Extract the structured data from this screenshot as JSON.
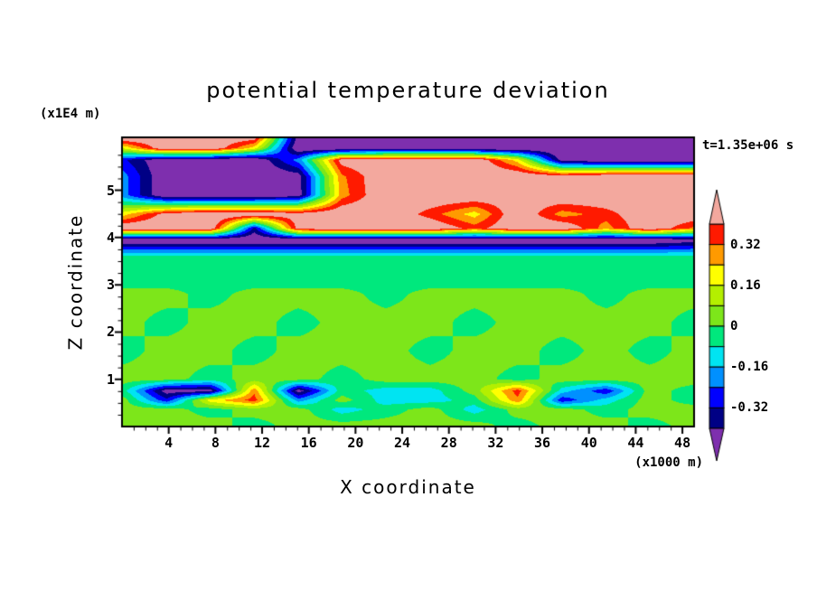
{
  "chart_data": {
    "type": "heatmap",
    "title": "potential temperature deviation",
    "timestamp": "t=1.35e+06 s",
    "x_axis": {
      "label": "X coordinate",
      "unit": "(x1000 m)",
      "ticks": [
        4,
        8,
        12,
        16,
        20,
        24,
        28,
        32,
        36,
        40,
        44,
        48
      ],
      "range": [
        0,
        49
      ]
    },
    "z_axis": {
      "label": "Z coordinate",
      "unit": "(x1E4 m)",
      "ticks": [
        1,
        2,
        3,
        4,
        5
      ],
      "range": [
        0,
        6.12
      ]
    },
    "colorbar": {
      "tick_labels": [
        "0.32",
        "0.16",
        "0",
        "-0.16",
        "-0.32"
      ],
      "tick_values": [
        0.32,
        0.16,
        0,
        -0.16,
        -0.32
      ],
      "levels": [
        -0.4,
        -0.32,
        -0.24,
        -0.16,
        -0.08,
        0,
        0.08,
        0.16,
        0.24,
        0.32,
        0.4
      ],
      "palette": [
        "#7e2fae",
        "#000085",
        "#0000ff",
        "#0090ff",
        "#00e4f2",
        "#00e87d",
        "#7de61a",
        "#b4ef00",
        "#ffff00",
        "#ff9a00",
        "#ff1a00",
        "#f3a89e"
      ],
      "under_color": "#7e2fae",
      "over_color": "#f3a89e"
    },
    "grid": {
      "x": [
        0,
        3.8,
        7.5,
        11.3,
        15.1,
        18.8,
        22.6,
        26.4,
        30.2,
        33.9,
        37.7,
        41.5,
        45.2,
        49
      ],
      "z": [
        6.12,
        5.9,
        5.65,
        5.3,
        4.9,
        4.5,
        4.2,
        3.95,
        3.6,
        3.05,
        2.8,
        2.2,
        1.6,
        1.0,
        0.75,
        0.55,
        0.35,
        0.0
      ],
      "values": [
        [
          0.5,
          0.5,
          0.5,
          0.45,
          -0.45,
          -0.5,
          -0.5,
          -0.5,
          -0.5,
          -0.5,
          -0.5,
          -0.5,
          -0.5,
          -0.5
        ],
        [
          0.16,
          0.5,
          0.5,
          0.2,
          -0.5,
          -0.5,
          -0.5,
          -0.5,
          -0.5,
          -0.5,
          -0.5,
          -0.5,
          -0.5,
          -0.5
        ],
        [
          -0.3,
          -0.5,
          -0.5,
          -0.5,
          -0.2,
          0.45,
          0.5,
          0.5,
          0.5,
          0.2,
          -0.45,
          -0.5,
          -0.5,
          -0.5
        ],
        [
          -0.2,
          -0.5,
          -0.5,
          -0.5,
          -0.45,
          0.3,
          0.5,
          0.5,
          0.5,
          0.5,
          0.45,
          0.5,
          0.5,
          0.5
        ],
        [
          -0.2,
          -0.5,
          -0.5,
          -0.5,
          -0.45,
          0.28,
          0.5,
          0.5,
          0.5,
          0.45,
          0.5,
          0.5,
          0.5,
          0.45
        ],
        [
          0.2,
          0.45,
          0.5,
          0.5,
          0.45,
          0.5,
          0.5,
          0.36,
          0.2,
          0.5,
          0.28,
          0.36,
          0.5,
          0.5
        ],
        [
          0.5,
          0.5,
          0.5,
          -0.35,
          0.45,
          0.5,
          0.5,
          0.5,
          0.36,
          0.5,
          0.5,
          0.28,
          0.5,
          0.3
        ],
        [
          -0.5,
          -0.5,
          -0.5,
          -0.5,
          -0.5,
          -0.5,
          -0.5,
          -0.5,
          -0.5,
          -0.5,
          -0.5,
          -0.5,
          -0.5,
          -0.45
        ],
        [
          -0.06,
          -0.06,
          -0.06,
          -0.06,
          -0.06,
          -0.06,
          -0.06,
          -0.06,
          -0.06,
          -0.06,
          -0.06,
          -0.06,
          -0.06,
          -0.06
        ],
        [
          -0.04,
          -0.04,
          -0.04,
          -0.04,
          -0.04,
          -0.04,
          -0.04,
          -0.04,
          -0.04,
          -0.04,
          -0.04,
          -0.04,
          -0.04,
          -0.04
        ],
        [
          0.04,
          0.04,
          -0.04,
          0.04,
          0.04,
          0.04,
          -0.04,
          0.04,
          0.04,
          0.04,
          0.04,
          -0.04,
          0.04,
          0.04
        ],
        [
          0.04,
          -0.04,
          0.04,
          0.04,
          -0.04,
          0.04,
          0.04,
          0.04,
          -0.04,
          0.04,
          0.04,
          0.04,
          0.04,
          -0.04
        ],
        [
          -0.04,
          0.04,
          0.04,
          -0.04,
          0.04,
          0.04,
          0.04,
          -0.04,
          0.04,
          0.04,
          -0.04,
          0.04,
          -0.04,
          0.04
        ],
        [
          0.04,
          0.04,
          -0.04,
          0.04,
          0.04,
          -0.04,
          0.04,
          0.04,
          0.04,
          -0.04,
          0.04,
          0.04,
          0.04,
          0.04
        ],
        [
          -0.04,
          -0.45,
          -0.45,
          0.3,
          -0.45,
          -0.04,
          -0.12,
          -0.12,
          0.04,
          0.36,
          -0.12,
          -0.3,
          0.04,
          -0.04
        ],
        [
          0.04,
          -0.3,
          0.2,
          0.36,
          -0.2,
          0.04,
          -0.12,
          -0.12,
          -0.04,
          0.3,
          -0.3,
          -0.12,
          0.04,
          -0.04
        ],
        [
          0.04,
          0.04,
          -0.04,
          0.04,
          0.04,
          -0.12,
          -0.04,
          0.04,
          -0.12,
          0.04,
          0.04,
          -0.04,
          0.04,
          0.04
        ],
        [
          0.04,
          0.04,
          0.04,
          -0.04,
          0.04,
          0.04,
          0.04,
          0.04,
          0.04,
          -0.04,
          0.04,
          0.04,
          -0.04,
          0.04
        ]
      ]
    }
  }
}
